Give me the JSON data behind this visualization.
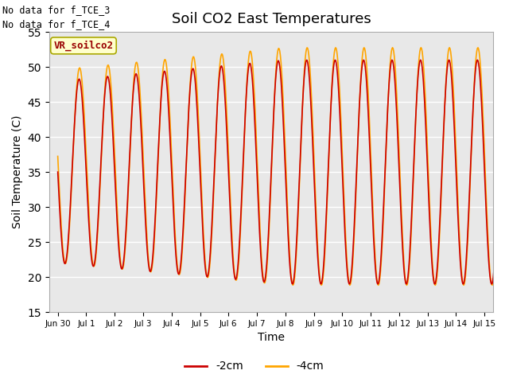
{
  "title": "Soil CO2 East Temperatures",
  "xlabel": "Time",
  "ylabel": "Soil Temperature (C)",
  "ylim": [
    15,
    55
  ],
  "annotation1": "No data for f_TCE_3",
  "annotation2": "No data for f_TCE_4",
  "legend_box_label": "VR_soilco2",
  "line1_label": "-2cm",
  "line2_label": "-4cm",
  "line1_color": "#cc0000",
  "line2_color": "#ffa500",
  "bg_color": "#e8e8e8",
  "xtick_labels": [
    "Jun 30",
    "Jul 1",
    "Jul 2",
    "Jul 3",
    "Jul 4",
    "Jul 5",
    "Jul 6",
    "Jul 7",
    "Jul 8",
    "Jul 9",
    "Jul 10",
    "Jul 11",
    "Jul 12",
    "Jul 13",
    "Jul 14",
    "Jul 15"
  ],
  "title_fontsize": 13,
  "axis_fontsize": 10,
  "legend_box_color": "#ffffcc",
  "legend_box_edge": "#aaa800",
  "yticks": [
    15,
    20,
    25,
    30,
    35,
    40,
    45,
    50,
    55
  ]
}
